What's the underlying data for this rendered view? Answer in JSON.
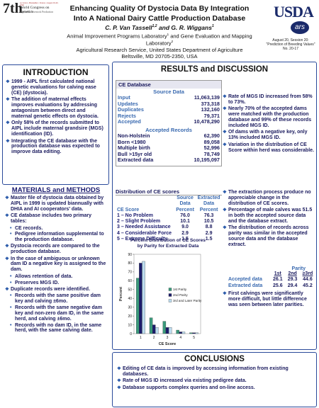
{
  "header": {
    "logo": {
      "number": "7th",
      "venue": "Le Corum, Montpellier • France • August 19-23, 2002",
      "name1": "World Congress on Genetics",
      "name2": "Applied to Livestock Production"
    },
    "title1": "Enhancing Quality Of Dystocia Data By Integration",
    "title2": "Into A National Dairy Cattle Production Database",
    "authors": {
      "name1": "C. P. Van Tassell",
      "sup1": "1,2",
      "and": "and",
      "name2": "G. R. Wiggans",
      "sup2": "1"
    },
    "affiliation": {
      "lab1": "Animal Improvement Programs Laboratory",
      "sup1": "1",
      "lab2": "and Gene Evaluation and Mapping Laboratory",
      "sup2": "2"
    },
    "agency": "Agricultural Research Service, United States Department of Agriculture",
    "address": "Beltsville, MD 20705-2350, USA",
    "usda": "USDA",
    "ars": "ars",
    "session": [
      "August 20, Session 20:",
      "\"Prediction of Breeding Values\"",
      "No. 20-17"
    ]
  },
  "introduction": {
    "heading": "INTRODUCTION",
    "bullets": [
      {
        "text": "1999 - AIPL first calculated national genetic evaluations for calving ease (CE) (dystocia)."
      },
      {
        "text": "The addition of maternal effects improves evaluations by addressing antagonism between direct and maternal genetic effects on dystocia."
      },
      {
        "text": "Only 58% of the records submitted to AIPL include maternal grandsire (MGS) identification (ID)."
      },
      {
        "text": "Integrating the CE database with the production database was expected to improve data editing."
      }
    ]
  },
  "methods": {
    "heading": "MATERIALS and METHODS",
    "bullets": [
      {
        "text": "Master file of dystocia data obtained by AIPL in 1999 is updated biannually with DHIA and AI cooperators' data."
      },
      {
        "text": "CE database includes two primary tables:",
        "sub": [
          "CE records.",
          "Pedigree information supplemental to the production database."
        ]
      },
      {
        "text": "Dystocia records are compared to the production database."
      },
      {
        "text": "In the case of ambiguous or unknown dam ID a negative key is assigned to the dam.",
        "sub": [
          "Allows retention of data.",
          "Preserves MGS ID."
        ]
      },
      {
        "text": "Duplicate records were identified.",
        "sub": [
          "Records with the same positive dam key and calving ±6mo.",
          "Records with the same negative dam key and non-zero dam ID, in the same herd, and calving ±6mo.",
          "Records with no dam ID, in the same herd, with the same calving date."
        ]
      }
    ]
  },
  "results": {
    "heading": "RESULTS and DISCUSSION",
    "ce_table": {
      "title": "CE Database",
      "source_header": "Source Data",
      "source_rows": [
        [
          "Input",
          "11,063,139"
        ],
        [
          "Updates",
          "373,318"
        ],
        [
          "Duplicates",
          "132,160"
        ],
        [
          "Rejects",
          "79,371"
        ],
        [
          "Accepted",
          "10,478,290"
        ]
      ],
      "accepted_header": "Accepted Records",
      "accepted_rows": [
        [
          "Non-Holstein",
          "62,390"
        ],
        [
          "Born <1980",
          "89,058"
        ],
        [
          "Multiple birth",
          "52,996"
        ],
        [
          "Bull >15yr old",
          "78,749"
        ],
        [
          "Extracted data",
          "10,195,097"
        ]
      ]
    },
    "bullets1": [
      {
        "text": "Rate of MGS ID increased from 58% to 73%."
      },
      {
        "text": "Nearly 70% of the accepted dams were matched with the production database and 99% of these records included MGS ID."
      },
      {
        "text": "Of dams with a negative key, only 13% included MGS ID."
      },
      {
        "text": "Variation in the distribution of CE Score within herd was considerable."
      }
    ],
    "dist_table": {
      "title": "Distribution of CE scores",
      "headers": [
        [
          "CE Score",
          ""
        ],
        [
          "Source",
          "Data",
          "Percent"
        ],
        [
          "Extracted",
          "Data",
          "Percent"
        ]
      ],
      "rows": [
        [
          "1 – No Problem",
          "76.0",
          "76.3"
        ],
        [
          "2 – Slight Problem",
          "10.1",
          "10.5"
        ],
        [
          "3 – Needed Assistance",
          "9.0",
          "8.8"
        ],
        [
          "4 – Considerable Force",
          "2.9",
          "2.9"
        ],
        [
          "5 – Extreme Difficulty",
          "1.5",
          "1.5"
        ]
      ]
    },
    "chart": {
      "type": "bar",
      "title": "Percent Distribution of CE Scores by Parity for Extracted Data",
      "x_label": "CE Score",
      "y_label": "Percent",
      "categories": [
        "1",
        "2",
        "3",
        "4",
        "5"
      ],
      "ylim": [
        0,
        90
      ],
      "yticks": [
        0,
        10,
        20,
        30,
        40,
        50,
        60,
        70,
        80,
        90
      ],
      "series": [
        {
          "name": "1st Parity",
          "color": "#3b9a7c",
          "values": [
            63,
            18,
            14,
            4,
            1
          ]
        },
        {
          "name": "2nd Parity",
          "color": "#1c1c6b",
          "values": [
            80,
            10,
            7,
            2,
            1
          ]
        },
        {
          "name": "3rd and Later Parity",
          "color": "#bcdcef",
          "values": [
            82,
            7,
            7,
            2,
            1
          ]
        }
      ]
    },
    "bullets2": [
      {
        "text": "The extraction process produce no appreciable change in the distribution of CE scores."
      },
      {
        "text": "Percentage of male calves was 51.5 in both the accepted source data and the database extract."
      },
      {
        "text": "The distribution of records across parity was similar in the accepted source data and the database extract."
      }
    ],
    "parity_table": {
      "title": "Parity",
      "headers": [
        "1st",
        "2nd",
        "≥3rd"
      ],
      "rows": [
        [
          "Accepted data",
          "26.1",
          "29.3",
          "44.6"
        ],
        [
          "Extracted data",
          "25.6",
          "29.4",
          "45.2"
        ]
      ]
    },
    "bullets3": [
      {
        "text": "First calvings were significantly more difficult, but little difference was seen between later parities."
      }
    ]
  },
  "conclusions": {
    "heading": "CONCLUSIONS",
    "bullets": [
      {
        "text": "Editing of CE data is improved by accessing information from existing databases."
      },
      {
        "text": "Rate of MGS ID increased via existing pedigree data."
      },
      {
        "text": "Database supports complex queries and on-line access."
      }
    ]
  }
}
